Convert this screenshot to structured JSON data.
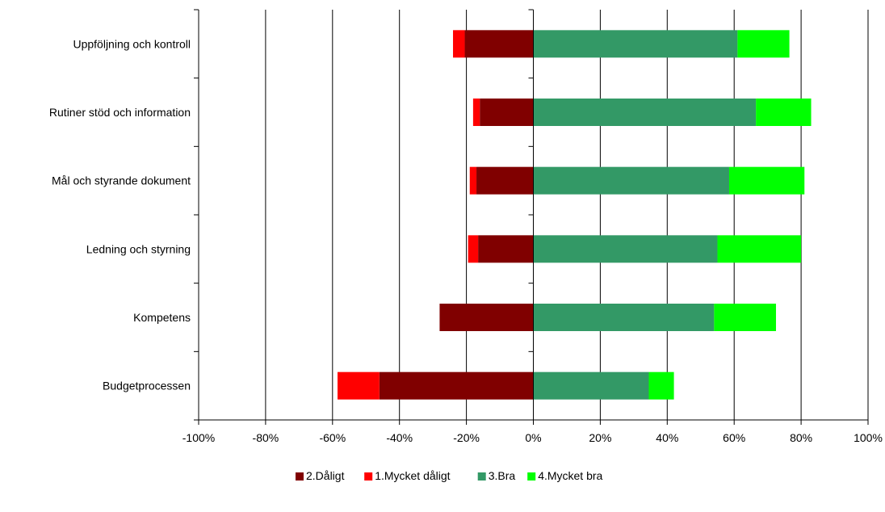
{
  "chart_data": {
    "type": "bar",
    "orientation": "horizontal",
    "stacked": "diverging",
    "title": "",
    "xlabel": "",
    "ylabel": "",
    "xlim": [
      -100,
      100
    ],
    "x_ticks": [
      -100,
      -80,
      -60,
      -40,
      -20,
      0,
      20,
      40,
      60,
      80,
      100
    ],
    "x_tick_labels": [
      "-100%",
      "-80%",
      "-60%",
      "-40%",
      "-20%",
      "0%",
      "20%",
      "40%",
      "60%",
      "80%",
      "100%"
    ],
    "grid": true,
    "legend_position": "bottom",
    "categories": [
      "Uppföljning och kontroll",
      "Rutiner stöd och information",
      "Mål och styrande dokument",
      "Ledning och styrning",
      "Kompetens",
      "Budgetprocessen"
    ],
    "series": [
      {
        "name": "2.Dåligt",
        "color": "#800000",
        "values": [
          -20.5,
          -16,
          -17,
          -16.5,
          -28,
          -46
        ]
      },
      {
        "name": "1.Mycket dåligt",
        "color": "#ff0000",
        "values": [
          -3.5,
          -2,
          -2,
          -3,
          0,
          -12.5
        ]
      },
      {
        "name": "3.Bra",
        "color": "#339966",
        "values": [
          61,
          66.5,
          58.5,
          55,
          54,
          34.5
        ]
      },
      {
        "name": "4.Mycket bra",
        "color": "#00ff00",
        "values": [
          15.5,
          16.5,
          22.5,
          25,
          18.5,
          7.5
        ]
      }
    ]
  }
}
